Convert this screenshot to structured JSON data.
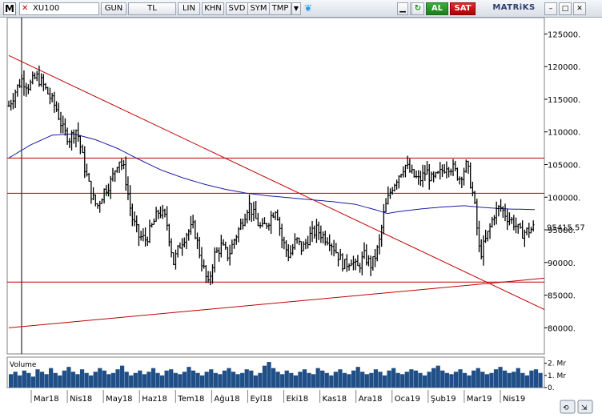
{
  "toolbar": {
    "menu_label": "M",
    "symbol": "XU100",
    "period": "GUN",
    "currency": "TL",
    "buttons": [
      "LIN",
      "KHN",
      "SVD",
      "SYM",
      "TMP"
    ],
    "buy_label": "AL",
    "sell_label": "SAT",
    "brand": "MATRiKS"
  },
  "colors": {
    "price": "#000000",
    "moving_average": "#1a1aa0",
    "trend_lines": "#c00000",
    "volume": "#1f4f86",
    "axis": "#000000"
  },
  "chart_data": {
    "type": "ohlc",
    "symbol": "XU100",
    "last_price_label": "95415.57",
    "y_ticks": [
      125000,
      120000,
      115000,
      110000,
      105000,
      100000,
      95000,
      90000,
      85000,
      80000
    ],
    "ylim": [
      76000,
      127500
    ],
    "x_ticks": [
      "Mar18",
      "Nis18",
      "May18",
      "Haz18",
      "Tem18",
      "Ağu18",
      "Eyl18",
      "Eki18",
      "Kas18",
      "Ara18",
      "Oca19",
      "Şub19",
      "Mar19",
      "Nis19"
    ],
    "price_path": [
      [
        0,
        114000
      ],
      [
        5,
        116500
      ],
      [
        9,
        118000
      ],
      [
        14,
        117000
      ],
      [
        19,
        118500
      ],
      [
        23,
        117500
      ],
      [
        28,
        115500
      ],
      [
        33,
        113500
      ],
      [
        38,
        110000
      ],
      [
        42,
        109000
      ],
      [
        47,
        110500
      ],
      [
        52,
        105000
      ],
      [
        57,
        100500
      ],
      [
        61,
        98500
      ],
      [
        66,
        101000
      ],
      [
        71,
        102500
      ],
      [
        76,
        106000
      ],
      [
        80,
        104000
      ],
      [
        85,
        97000
      ],
      [
        90,
        94000
      ],
      [
        95,
        93500
      ],
      [
        100,
        96000
      ],
      [
        104,
        98000
      ],
      [
        109,
        96500
      ],
      [
        114,
        90000
      ],
      [
        119,
        93000
      ],
      [
        123,
        94500
      ],
      [
        128,
        95500
      ],
      [
        133,
        90500
      ],
      [
        138,
        86500
      ],
      [
        142,
        91000
      ],
      [
        147,
        92500
      ],
      [
        152,
        91000
      ],
      [
        156,
        93500
      ],
      [
        161,
        96000
      ],
      [
        166,
        99000
      ],
      [
        170,
        97000
      ],
      [
        175,
        95000
      ],
      [
        180,
        96500
      ],
      [
        185,
        98500
      ],
      [
        189,
        93500
      ],
      [
        194,
        91000
      ],
      [
        199,
        93500
      ],
      [
        203,
        92000
      ],
      [
        208,
        94000
      ],
      [
        213,
        95000
      ],
      [
        218,
        94000
      ],
      [
        222,
        93500
      ],
      [
        227,
        91500
      ],
      [
        232,
        89500
      ],
      [
        237,
        90500
      ],
      [
        241,
        89000
      ],
      [
        246,
        91000
      ],
      [
        251,
        89500
      ],
      [
        256,
        92500
      ],
      [
        260,
        98000
      ],
      [
        265,
        101500
      ],
      [
        270,
        103500
      ],
      [
        274,
        105000
      ],
      [
        279,
        103500
      ],
      [
        284,
        102500
      ],
      [
        289,
        104000
      ],
      [
        293,
        102500
      ],
      [
        298,
        103500
      ],
      [
        303,
        105000
      ],
      [
        307,
        104500
      ],
      [
        312,
        103000
      ],
      [
        317,
        105000
      ],
      [
        322,
        99500
      ],
      [
        326,
        91000
      ],
      [
        331,
        94000
      ],
      [
        336,
        97500
      ],
      [
        340,
        98500
      ],
      [
        345,
        97000
      ],
      [
        350,
        96000
      ],
      [
        354,
        94500
      ],
      [
        359,
        94800
      ],
      [
        364,
        95415
      ]
    ],
    "moving_average_path": [
      [
        0,
        106000
      ],
      [
        15,
        108000
      ],
      [
        30,
        109500
      ],
      [
        45,
        109700
      ],
      [
        60,
        108800
      ],
      [
        75,
        107500
      ],
      [
        90,
        105800
      ],
      [
        105,
        104200
      ],
      [
        120,
        103000
      ],
      [
        135,
        102000
      ],
      [
        150,
        101200
      ],
      [
        165,
        100600
      ],
      [
        180,
        100200
      ],
      [
        195,
        99900
      ],
      [
        210,
        99600
      ],
      [
        225,
        99300
      ],
      [
        240,
        98900
      ],
      [
        255,
        98000
      ],
      [
        262,
        97500
      ],
      [
        270,
        97800
      ],
      [
        285,
        98200
      ],
      [
        300,
        98500
      ],
      [
        315,
        98700
      ],
      [
        330,
        98400
      ],
      [
        345,
        98200
      ],
      [
        364,
        98100
      ]
    ],
    "horizontal_lines": [
      106000,
      100600,
      87000
    ],
    "trend_lines": [
      {
        "from": [
          0,
          121700
        ],
        "to": [
          364,
          82800
        ]
      },
      {
        "from": [
          0,
          80000
        ],
        "to": [
          364,
          87600
        ]
      }
    ],
    "volume_panel": {
      "label": "Volume",
      "y_ticks": [
        "2. Mr",
        "1. Mr",
        "0."
      ],
      "max_value": 2.5,
      "values": [
        1.1,
        1.3,
        1.0,
        1.4,
        1.2,
        0.9,
        1.5,
        1.3,
        1.1,
        1.6,
        1.2,
        1.0,
        1.4,
        1.7,
        1.3,
        1.1,
        1.5,
        1.2,
        1.0,
        1.3,
        1.6,
        1.4,
        1.1,
        1.2,
        1.5,
        1.8,
        1.3,
        1.0,
        1.2,
        1.4,
        1.1,
        1.3,
        1.6,
        1.2,
        1.0,
        1.4,
        1.5,
        1.2,
        1.1,
        1.3,
        1.7,
        1.4,
        1.2,
        1.0,
        1.3,
        1.5,
        1.2,
        1.1,
        1.4,
        1.6,
        1.3,
        1.1,
        1.2,
        1.5,
        1.4,
        1.0,
        1.2,
        1.8,
        2.1,
        1.6,
        1.3,
        1.1,
        1.4,
        1.2,
        1.0,
        1.3,
        1.5,
        1.2,
        1.1,
        1.6,
        1.4,
        1.2,
        1.0,
        1.3,
        1.5,
        1.2,
        1.1,
        1.4,
        1.7,
        1.3,
        1.1,
        1.2,
        1.5,
        1.3,
        1.0,
        1.4,
        1.6,
        1.2,
        1.1,
        1.3,
        1.5,
        1.4,
        1.2,
        1.0,
        1.3,
        1.6,
        1.8,
        1.4,
        1.2,
        1.1,
        1.3,
        1.5,
        1.2,
        1.0,
        1.4,
        1.6,
        1.3,
        1.1,
        1.2,
        1.5,
        1.7,
        1.4,
        1.2,
        1.3,
        1.6,
        1.2,
        1.0,
        1.4,
        1.5,
        1.2
      ]
    }
  }
}
